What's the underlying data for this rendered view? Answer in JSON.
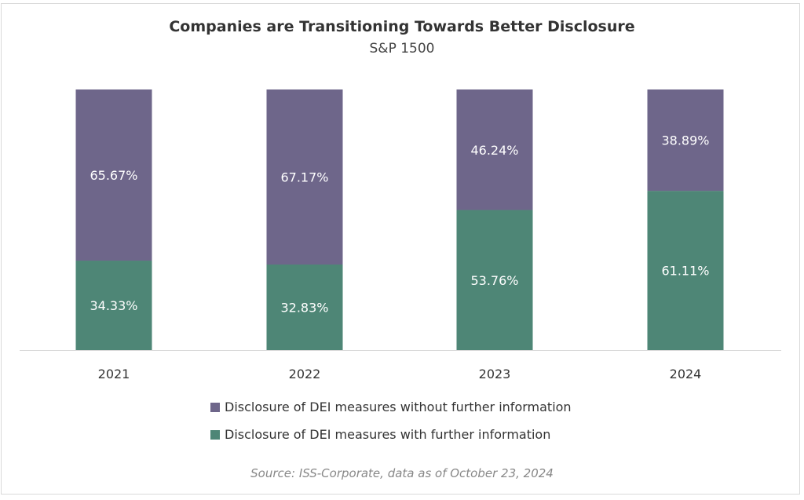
{
  "chart_data": {
    "type": "bar",
    "stacked": true,
    "title": "Companies are Transitioning Towards Better Disclosure",
    "subtitle": "S&P 1500",
    "categories": [
      "2021",
      "2022",
      "2023",
      "2024"
    ],
    "series": [
      {
        "name": "Disclosure of DEI measures with further information",
        "values": [
          34.33,
          32.83,
          53.76,
          61.11
        ],
        "labels": [
          "34.33%",
          "32.83%",
          "53.76%",
          "61.11%"
        ],
        "color": "#4e8676"
      },
      {
        "name": "Disclosure of DEI measures without further information",
        "values": [
          65.67,
          67.17,
          46.24,
          38.89
        ],
        "labels": [
          "65.67%",
          "67.17%",
          "46.24%",
          "38.89%"
        ],
        "color": "#6e668a"
      }
    ],
    "ylim": [
      0,
      100
    ],
    "grid": false,
    "legend_position": "bottom",
    "source": "Source: ISS-Corporate, data as of October 23, 2024"
  }
}
